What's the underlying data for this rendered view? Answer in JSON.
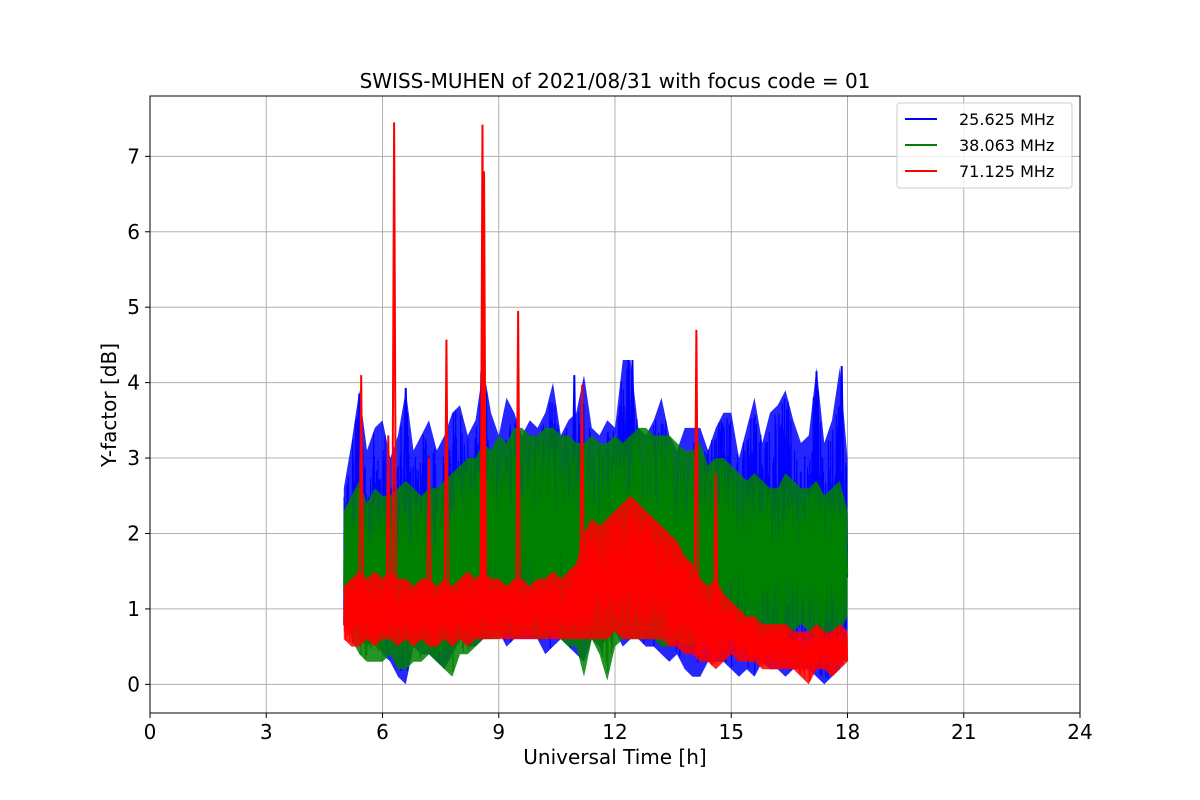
{
  "chart_data": {
    "type": "line",
    "title": "SWISS-MUHEN of 2021/08/31 with focus code = 01",
    "xlabel": "Universal Time [h]",
    "ylabel": "Y-factor [dB]",
    "xlim": [
      0,
      24
    ],
    "ylim": [
      -0.38,
      7.8
    ],
    "xticks": [
      0,
      3,
      6,
      9,
      12,
      15,
      18,
      21,
      24
    ],
    "yticks": [
      0,
      1,
      2,
      3,
      4,
      5,
      6,
      7
    ],
    "grid": true,
    "legend_position": "top-right",
    "series": [
      {
        "name": "25.625 MHz",
        "color": "#0000ff",
        "x": [
          5.0,
          5.2,
          5.4,
          5.6,
          5.8,
          6.0,
          6.2,
          6.4,
          6.6,
          6.8,
          7.0,
          7.2,
          7.4,
          7.6,
          7.8,
          8.0,
          8.2,
          8.4,
          8.6,
          8.8,
          9.0,
          9.2,
          9.4,
          9.6,
          9.8,
          10.0,
          10.2,
          10.4,
          10.6,
          10.8,
          11.0,
          11.2,
          11.4,
          11.6,
          11.8,
          12.0,
          12.2,
          12.4,
          12.6,
          12.8,
          13.0,
          13.2,
          13.4,
          13.6,
          13.8,
          14.0,
          14.2,
          14.4,
          14.6,
          14.8,
          15.0,
          15.2,
          15.4,
          15.6,
          15.8,
          16.0,
          16.2,
          16.4,
          16.6,
          16.8,
          17.0,
          17.2,
          17.4,
          17.6,
          17.8,
          18.0
        ],
        "max": [
          2.6,
          3.2,
          3.9,
          3.1,
          3.4,
          3.5,
          3.0,
          3.3,
          3.9,
          3.1,
          3.3,
          3.5,
          3.1,
          3.3,
          3.6,
          3.7,
          3.3,
          3.5,
          4.2,
          3.6,
          3.3,
          3.8,
          3.6,
          3.3,
          3.5,
          3.4,
          3.6,
          4.0,
          3.3,
          3.5,
          3.6,
          4.1,
          3.4,
          3.3,
          3.5,
          3.4,
          4.3,
          4.3,
          3.4,
          3.3,
          3.5,
          3.8,
          3.3,
          3.1,
          3.4,
          3.4,
          3.4,
          3.1,
          3.4,
          3.6,
          3.6,
          3.0,
          3.4,
          3.8,
          3.2,
          3.6,
          3.7,
          3.9,
          3.5,
          3.2,
          3.3,
          4.2,
          3.2,
          3.5,
          4.2,
          3.0
        ],
        "min": [
          0.7,
          0.9,
          0.6,
          0.5,
          0.6,
          0.4,
          0.3,
          0.1,
          0.0,
          0.5,
          0.4,
          0.4,
          0.3,
          0.2,
          0.4,
          0.6,
          0.5,
          0.5,
          0.6,
          0.6,
          0.7,
          0.5,
          0.6,
          0.6,
          0.6,
          0.6,
          0.4,
          0.5,
          0.6,
          0.5,
          0.4,
          0.3,
          0.6,
          0.5,
          0.6,
          0.7,
          0.5,
          0.6,
          0.6,
          0.5,
          0.5,
          0.4,
          0.3,
          0.4,
          0.2,
          0.1,
          0.1,
          0.3,
          0.3,
          0.3,
          0.2,
          0.1,
          0.2,
          0.1,
          0.3,
          0.2,
          0.2,
          0.1,
          0.2,
          0.2,
          0.2,
          0.1,
          0.0,
          0.1,
          0.2,
          0.5
        ]
      },
      {
        "name": "38.063 MHz",
        "color": "#008000",
        "x": [
          5.0,
          5.2,
          5.4,
          5.6,
          5.8,
          6.0,
          6.2,
          6.4,
          6.6,
          6.8,
          7.0,
          7.2,
          7.4,
          7.6,
          7.8,
          8.0,
          8.2,
          8.4,
          8.6,
          8.8,
          9.0,
          9.2,
          9.4,
          9.6,
          9.8,
          10.0,
          10.2,
          10.4,
          10.6,
          10.8,
          11.0,
          11.2,
          11.4,
          11.6,
          11.8,
          12.0,
          12.2,
          12.4,
          12.6,
          12.8,
          13.0,
          13.2,
          13.4,
          13.6,
          13.8,
          14.0,
          14.2,
          14.4,
          14.6,
          14.8,
          15.0,
          15.2,
          15.4,
          15.6,
          15.8,
          16.0,
          16.2,
          16.4,
          16.6,
          16.8,
          17.0,
          17.2,
          17.4,
          17.6,
          17.8,
          18.0
        ],
        "max": [
          2.3,
          2.5,
          2.7,
          2.4,
          2.6,
          2.5,
          2.5,
          2.6,
          2.7,
          2.6,
          2.5,
          2.6,
          2.6,
          2.7,
          2.8,
          2.9,
          3.0,
          3.0,
          3.2,
          3.1,
          3.3,
          3.2,
          3.4,
          3.4,
          3.3,
          3.3,
          3.4,
          3.4,
          3.3,
          3.3,
          3.2,
          3.2,
          3.3,
          3.2,
          3.2,
          3.3,
          3.2,
          3.3,
          3.4,
          3.4,
          3.3,
          3.3,
          3.3,
          3.2,
          3.1,
          3.1,
          3.2,
          2.9,
          3.0,
          3.0,
          2.9,
          2.8,
          2.7,
          2.8,
          2.7,
          2.6,
          2.6,
          2.8,
          2.7,
          2.6,
          2.6,
          2.7,
          2.5,
          2.6,
          2.7,
          2.3
        ],
        "min": [
          1.1,
          0.6,
          0.4,
          0.3,
          0.3,
          0.3,
          0.4,
          0.2,
          0.2,
          0.3,
          0.3,
          0.4,
          0.3,
          0.2,
          0.1,
          0.4,
          0.4,
          0.5,
          0.6,
          0.6,
          0.6,
          0.7,
          0.6,
          0.7,
          0.7,
          0.6,
          0.6,
          0.7,
          0.6,
          0.5,
          0.5,
          0.1,
          0.6,
          0.4,
          0.05,
          0.5,
          0.6,
          0.6,
          0.6,
          0.6,
          0.6,
          0.5,
          0.5,
          0.6,
          0.5,
          0.5,
          0.6,
          0.7,
          0.7,
          0.8,
          0.8,
          0.6,
          0.6,
          0.5,
          0.6,
          0.6,
          0.7,
          0.6,
          0.7,
          0.8,
          0.7,
          0.6,
          0.7,
          0.7,
          0.7,
          0.9
        ]
      },
      {
        "name": "71.125 MHz",
        "color": "#ff0000",
        "x": [
          5.0,
          5.2,
          5.4,
          5.6,
          5.8,
          6.0,
          6.2,
          6.4,
          6.6,
          6.8,
          7.0,
          7.2,
          7.4,
          7.6,
          7.8,
          8.0,
          8.2,
          8.4,
          8.6,
          8.8,
          9.0,
          9.2,
          9.4,
          9.6,
          9.8,
          10.0,
          10.2,
          10.4,
          10.6,
          10.8,
          11.0,
          11.2,
          11.4,
          11.6,
          11.8,
          12.0,
          12.2,
          12.4,
          12.6,
          12.8,
          13.0,
          13.2,
          13.4,
          13.6,
          13.8,
          14.0,
          14.2,
          14.4,
          14.6,
          14.8,
          15.0,
          15.2,
          15.4,
          15.6,
          15.8,
          16.0,
          16.2,
          16.4,
          16.6,
          16.8,
          17.0,
          17.2,
          17.4,
          17.6,
          17.8,
          18.0
        ],
        "max": [
          1.3,
          1.4,
          1.5,
          1.4,
          1.5,
          1.4,
          1.5,
          1.4,
          1.4,
          1.3,
          1.4,
          1.4,
          1.3,
          1.4,
          1.3,
          1.4,
          1.5,
          1.4,
          1.5,
          1.4,
          1.4,
          1.3,
          1.4,
          1.4,
          1.3,
          1.4,
          1.4,
          1.5,
          1.4,
          1.5,
          1.6,
          2.0,
          2.2,
          2.1,
          2.2,
          2.3,
          2.4,
          2.5,
          2.4,
          2.3,
          2.2,
          2.1,
          2.0,
          1.9,
          1.7,
          1.6,
          1.4,
          1.3,
          1.4,
          1.2,
          1.1,
          1.0,
          0.9,
          0.9,
          0.8,
          0.8,
          0.8,
          0.8,
          0.7,
          0.7,
          0.7,
          0.8,
          0.7,
          0.7,
          0.8,
          0.7
        ],
        "min": [
          0.6,
          0.5,
          0.5,
          0.6,
          0.5,
          0.6,
          0.6,
          0.5,
          0.6,
          0.5,
          0.6,
          0.5,
          0.5,
          0.6,
          0.5,
          0.6,
          0.5,
          0.6,
          0.6,
          0.6,
          0.6,
          0.6,
          0.6,
          0.6,
          0.6,
          0.6,
          0.6,
          0.6,
          0.6,
          0.6,
          0.6,
          0.6,
          0.6,
          0.6,
          0.6,
          0.7,
          0.6,
          0.6,
          0.6,
          0.6,
          0.6,
          0.6,
          0.5,
          0.5,
          0.4,
          0.4,
          0.3,
          0.3,
          0.2,
          0.3,
          0.4,
          0.3,
          0.3,
          0.3,
          0.2,
          0.2,
          0.2,
          0.2,
          0.2,
          0.1,
          0.0,
          0.2,
          0.2,
          0.1,
          0.2,
          0.3
        ]
      }
    ],
    "spikes": [
      {
        "series": "71.125 MHz",
        "x": 5.45,
        "y": 4.1
      },
      {
        "series": "71.125 MHz",
        "x": 6.15,
        "y": 3.3
      },
      {
        "series": "71.125 MHz",
        "x": 6.3,
        "y": 7.45
      },
      {
        "series": "71.125 MHz",
        "x": 7.2,
        "y": 3.0
      },
      {
        "series": "71.125 MHz",
        "x": 7.65,
        "y": 4.57
      },
      {
        "series": "71.125 MHz",
        "x": 8.58,
        "y": 7.42
      },
      {
        "series": "71.125 MHz",
        "x": 8.62,
        "y": 6.8
      },
      {
        "series": "71.125 MHz",
        "x": 9.5,
        "y": 4.95
      },
      {
        "series": "71.125 MHz",
        "x": 11.15,
        "y": 3.97
      },
      {
        "series": "71.125 MHz",
        "x": 14.1,
        "y": 4.7
      },
      {
        "series": "71.125 MHz",
        "x": 14.6,
        "y": 2.8
      },
      {
        "series": "25.625 MHz",
        "x": 5.4,
        "y": 3.85
      },
      {
        "series": "25.625 MHz",
        "x": 6.6,
        "y": 3.93
      },
      {
        "series": "25.625 MHz",
        "x": 8.55,
        "y": 4.15
      },
      {
        "series": "25.625 MHz",
        "x": 10.95,
        "y": 4.1
      },
      {
        "series": "25.625 MHz",
        "x": 12.35,
        "y": 4.3
      },
      {
        "series": "25.625 MHz",
        "x": 12.45,
        "y": 4.3
      },
      {
        "series": "25.625 MHz",
        "x": 17.2,
        "y": 4.15
      },
      {
        "series": "25.625 MHz",
        "x": 17.85,
        "y": 4.22
      }
    ]
  }
}
